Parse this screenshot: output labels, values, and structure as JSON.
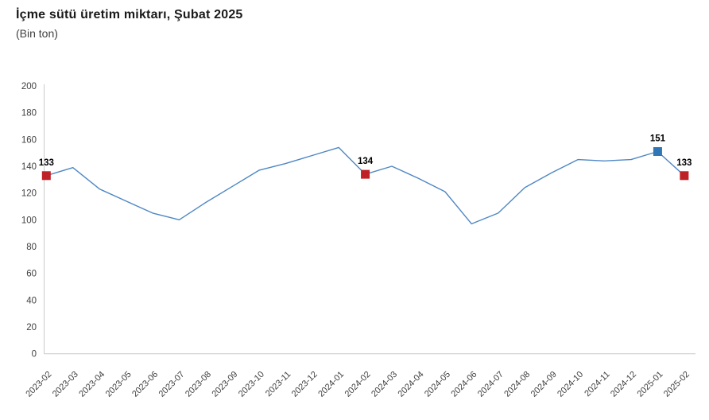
{
  "header": {
    "title": "İçme sütü üretim miktarı, Şubat 2025",
    "subtitle": "(Bin ton)"
  },
  "chart_data": {
    "type": "line",
    "title": "İçme sütü üretim miktarı, Şubat 2025",
    "subtitle": "(Bin ton)",
    "xlabel": "",
    "ylabel": "",
    "ylim": [
      0,
      200
    ],
    "yticks": [
      0,
      20,
      40,
      60,
      80,
      100,
      120,
      140,
      160,
      180,
      200
    ],
    "grid": "off",
    "legend": "none",
    "categories": [
      "2023-02",
      "2023-03",
      "2023-04",
      "2023-05",
      "2023-06",
      "2023-07",
      "2023-08",
      "2023-09",
      "2023-10",
      "2023-11",
      "2023-12",
      "2024-01",
      "2024-02",
      "2024-03",
      "2024-04",
      "2024-05",
      "2024-06",
      "2024-07",
      "2024-08",
      "2024-09",
      "2024-10",
      "2024-11",
      "2024-12",
      "2025-01",
      "2025-02"
    ],
    "values": [
      133,
      139,
      123,
      114,
      105,
      100,
      113,
      125,
      137,
      142,
      148,
      154,
      134,
      140,
      131,
      121,
      97,
      105,
      124,
      135,
      145,
      144,
      145,
      151,
      133
    ],
    "highlights": [
      {
        "category": "2023-02",
        "value": 133,
        "label": "133",
        "color": "#be2126"
      },
      {
        "category": "2024-02",
        "value": 134,
        "label": "134",
        "color": "#be2126"
      },
      {
        "category": "2025-01",
        "value": 151,
        "label": "151",
        "color": "#2e76b5"
      },
      {
        "category": "2025-02",
        "value": 133,
        "label": "133",
        "color": "#be2126"
      }
    ],
    "colors": {
      "line": "#4e87c3",
      "marker_red": "#be2126",
      "marker_blue": "#2e76b5",
      "axis": "#c9c9c9",
      "tick_text": "#404040",
      "data_label_text": "#000000"
    }
  }
}
